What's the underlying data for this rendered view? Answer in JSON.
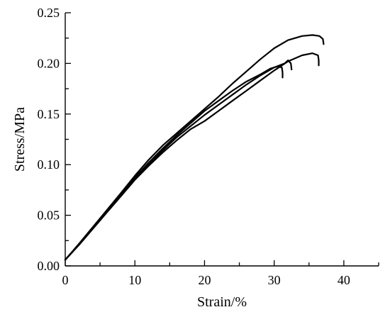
{
  "chart_data": {
    "type": "line",
    "title": "",
    "xlabel": "Strain/%",
    "ylabel": "Stress/MPa",
    "xlim": [
      0,
      45
    ],
    "ylim": [
      0,
      0.25
    ],
    "xticks": [
      0,
      10,
      20,
      30,
      40
    ],
    "xtick_labels": [
      "0",
      "10",
      "20",
      "30",
      "40"
    ],
    "yticks": [
      0,
      0.05,
      0.1,
      0.15,
      0.2,
      0.25
    ],
    "ytick_labels": [
      "0.00",
      "0.05",
      "0.10",
      "0.15",
      "0.20",
      "0.25"
    ],
    "grid": false,
    "legend": "none",
    "line_color": "#000000",
    "series": [
      {
        "points": [
          [
            0,
            0.006
          ],
          [
            2,
            0.022
          ],
          [
            5,
            0.047
          ],
          [
            8,
            0.072
          ],
          [
            10,
            0.089
          ],
          [
            12,
            0.105
          ],
          [
            14,
            0.119
          ],
          [
            16,
            0.131
          ],
          [
            18,
            0.143
          ],
          [
            20,
            0.155
          ],
          [
            22,
            0.167
          ],
          [
            24,
            0.18
          ],
          [
            26,
            0.192
          ],
          [
            28,
            0.204
          ],
          [
            30,
            0.215
          ],
          [
            32,
            0.223
          ],
          [
            34,
            0.227
          ],
          [
            35.5,
            0.228
          ],
          [
            36.5,
            0.227
          ],
          [
            37,
            0.224
          ],
          [
            37.1,
            0.219
          ]
        ]
      },
      {
        "points": [
          [
            0,
            0.006
          ],
          [
            2,
            0.021
          ],
          [
            5,
            0.045
          ],
          [
            8,
            0.069
          ],
          [
            10,
            0.085
          ],
          [
            12,
            0.099
          ],
          [
            14,
            0.112
          ],
          [
            16,
            0.124
          ],
          [
            18,
            0.135
          ],
          [
            20,
            0.143
          ],
          [
            22,
            0.153
          ],
          [
            24,
            0.163
          ],
          [
            26,
            0.173
          ],
          [
            28,
            0.183
          ],
          [
            30,
            0.193
          ],
          [
            32,
            0.202
          ],
          [
            34,
            0.208
          ],
          [
            35.5,
            0.21
          ],
          [
            36.3,
            0.208
          ],
          [
            36.4,
            0.203
          ],
          [
            36.4,
            0.198
          ]
        ]
      },
      {
        "points": [
          [
            0,
            0.006
          ],
          [
            2,
            0.021
          ],
          [
            5,
            0.045
          ],
          [
            8,
            0.07
          ],
          [
            10,
            0.087
          ],
          [
            12,
            0.101
          ],
          [
            14,
            0.114
          ],
          [
            16,
            0.127
          ],
          [
            18,
            0.138
          ],
          [
            20,
            0.149
          ],
          [
            22,
            0.159
          ],
          [
            24,
            0.169
          ],
          [
            26,
            0.179
          ],
          [
            28,
            0.188
          ],
          [
            30,
            0.196
          ],
          [
            31.5,
            0.2
          ],
          [
            32,
            0.203
          ],
          [
            32.4,
            0.2
          ],
          [
            32.5,
            0.194
          ]
        ]
      },
      {
        "points": [
          [
            0,
            0.006
          ],
          [
            2,
            0.021
          ],
          [
            5,
            0.045
          ],
          [
            8,
            0.07
          ],
          [
            10,
            0.087
          ],
          [
            12,
            0.102
          ],
          [
            14,
            0.116
          ],
          [
            16,
            0.129
          ],
          [
            18,
            0.141
          ],
          [
            20,
            0.153
          ],
          [
            22,
            0.163
          ],
          [
            24,
            0.173
          ],
          [
            26,
            0.182
          ],
          [
            28,
            0.189
          ],
          [
            29.5,
            0.195
          ],
          [
            30.5,
            0.197
          ],
          [
            31.1,
            0.196
          ],
          [
            31.2,
            0.191
          ],
          [
            31.2,
            0.186
          ]
        ]
      }
    ]
  }
}
